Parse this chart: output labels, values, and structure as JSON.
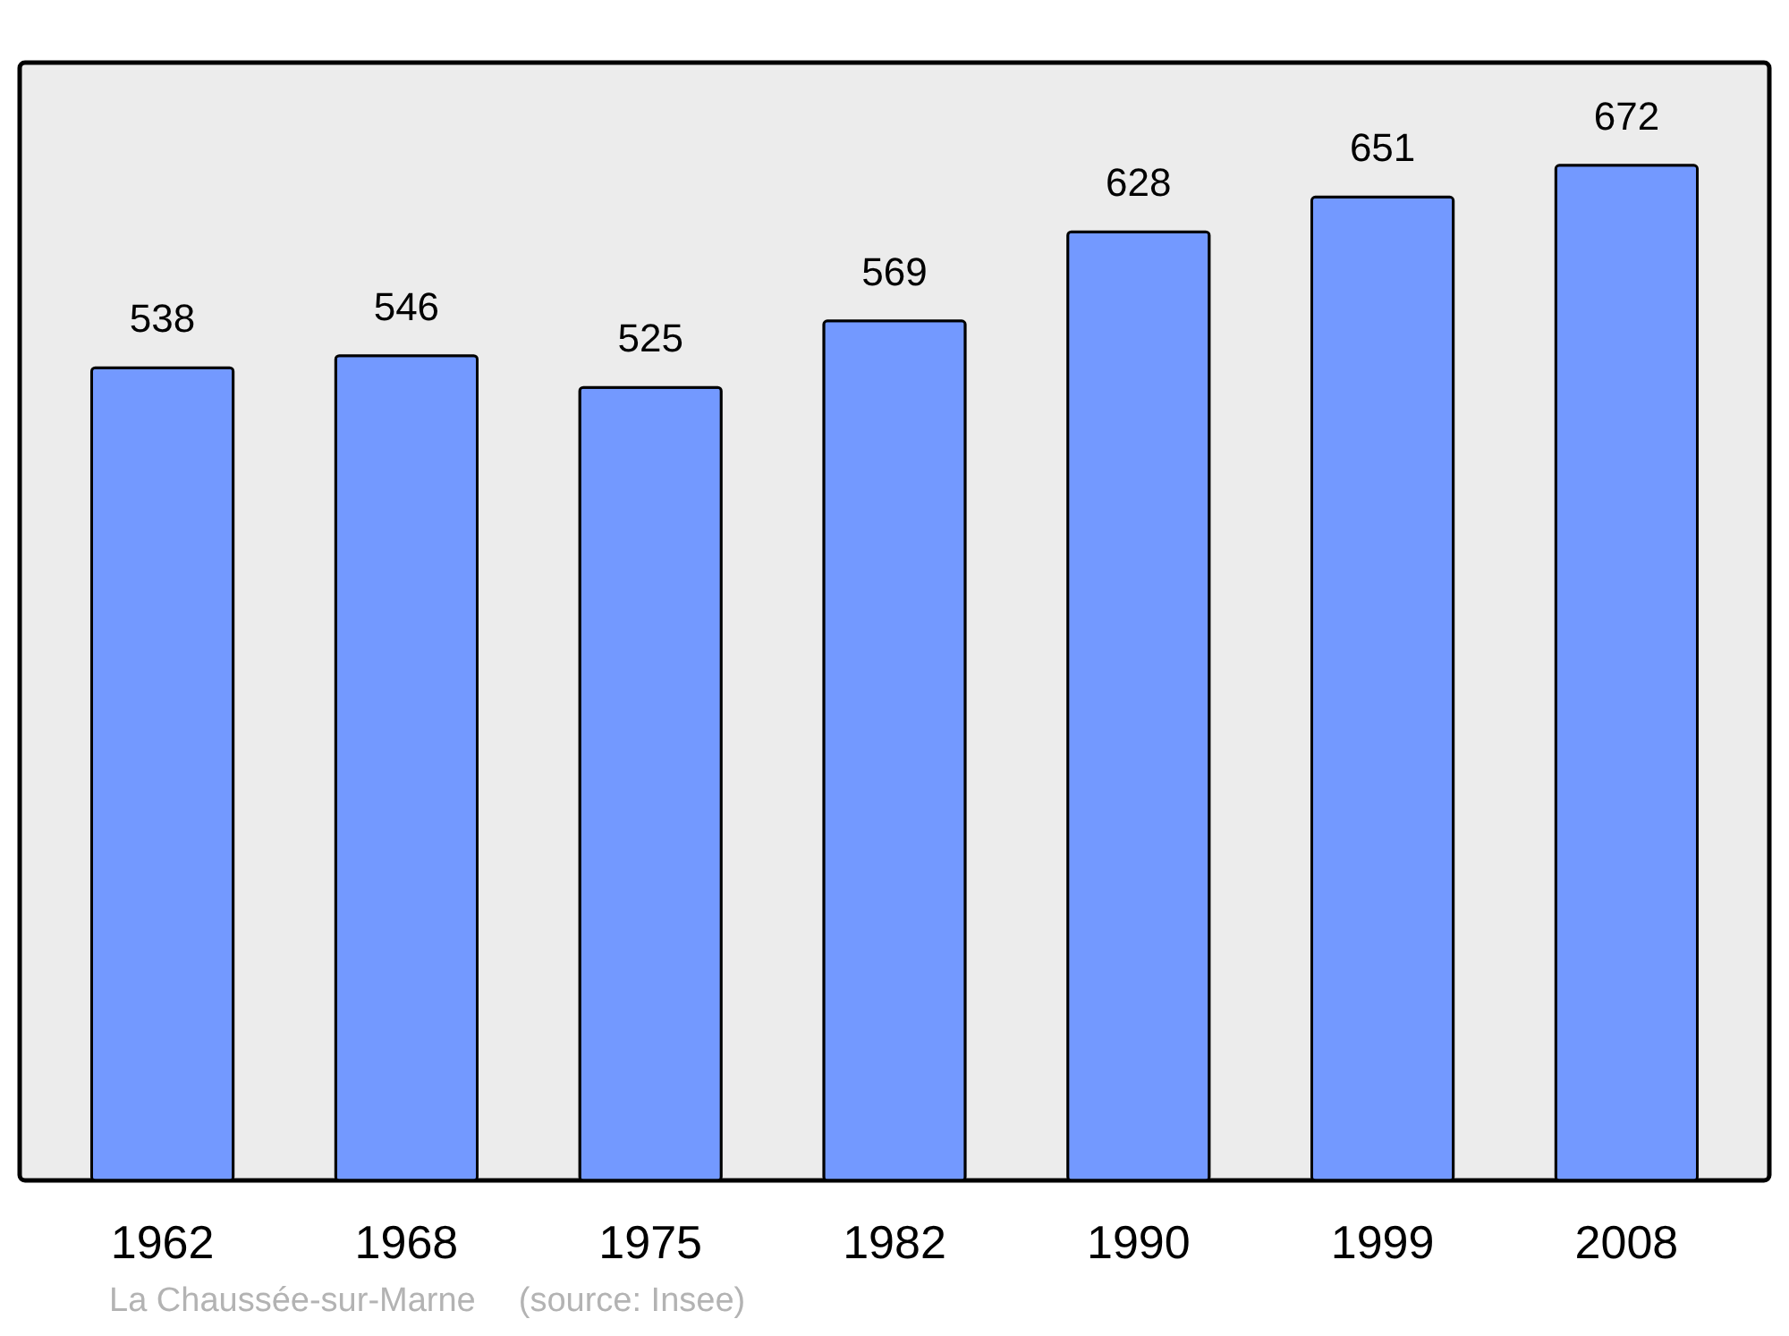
{
  "chart_data": {
    "type": "bar",
    "categories": [
      "1962",
      "1968",
      "1975",
      "1982",
      "1990",
      "1999",
      "2008"
    ],
    "values": [
      538,
      546,
      525,
      569,
      628,
      651,
      672
    ],
    "color": "#7399ff",
    "ylim": [
      0,
      740
    ],
    "data_labels": true,
    "grid": false,
    "annotations": [
      "La Chaussée-sur-Marne",
      "(source: Insee)"
    ]
  }
}
